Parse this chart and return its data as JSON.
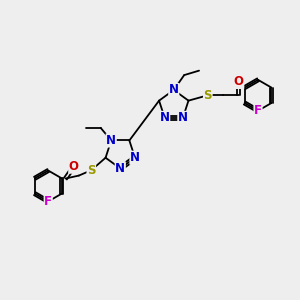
{
  "bg_color": "#eeeeee",
  "bond_color": "#000000",
  "N_color": "#0000cc",
  "S_color": "#999900",
  "O_color": "#cc0000",
  "F_color": "#cc00cc",
  "fig_size": [
    3.0,
    3.0
  ],
  "dpi": 100,
  "xlim": [
    0,
    10
  ],
  "ylim": [
    0,
    10
  ]
}
